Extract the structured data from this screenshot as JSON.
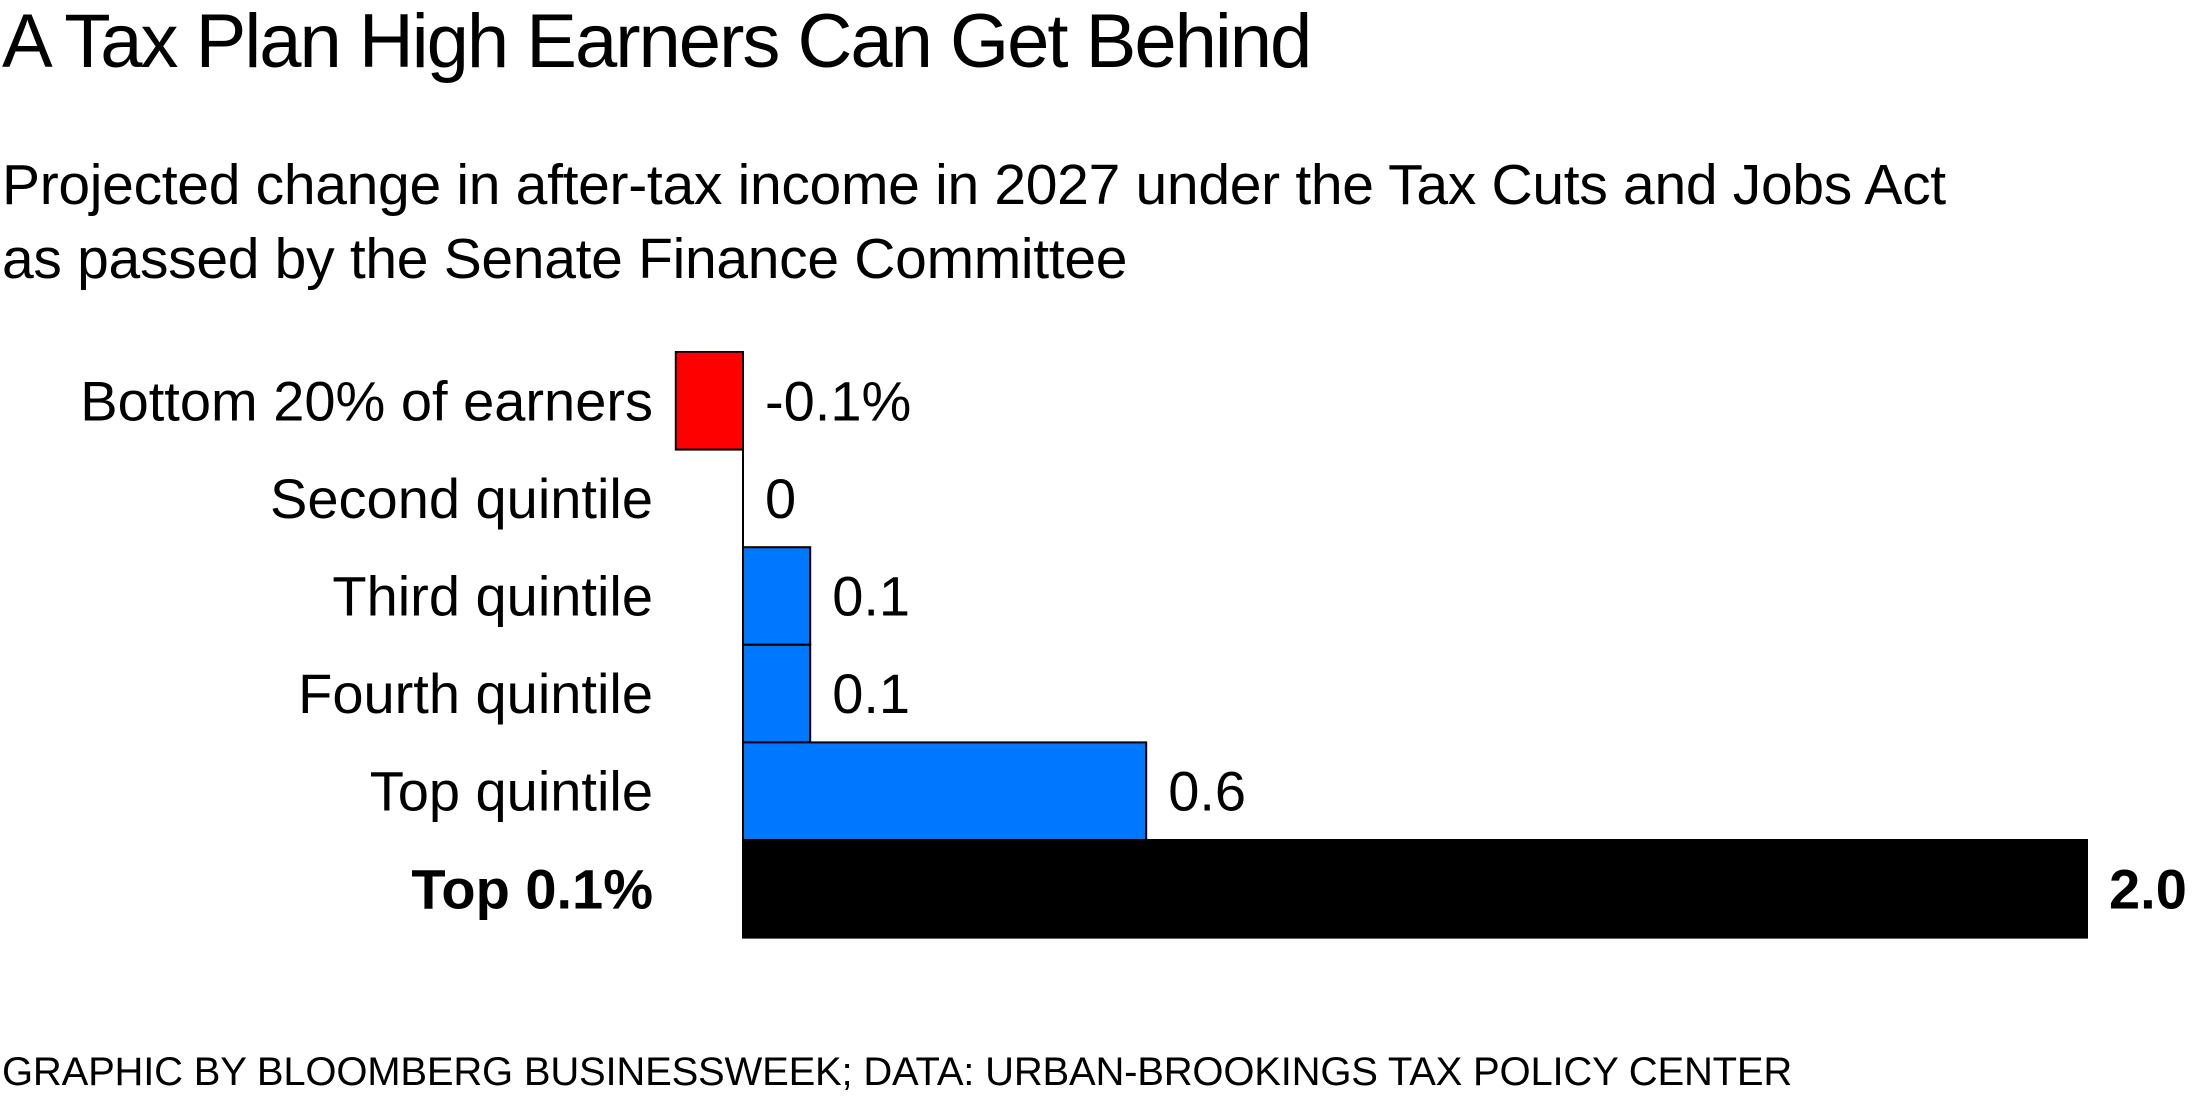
{
  "header": {
    "title": "A Tax Plan High Earners Can Get Behind",
    "subtitle_line1": "Projected change in after-tax income in 2027 under the Tax Cuts and Jobs Act",
    "subtitle_line2": "as passed by the Senate Finance Committee"
  },
  "footer": {
    "source": "GRAPHIC BY BLOOMBERG BUSINESSWEEK; DATA: URBAN-BROOKINGS TAX POLICY CENTER"
  },
  "colors": {
    "negative": "#ff0000",
    "positive": "#0077ff",
    "highlight": "#000000",
    "text": "#000000",
    "bar_stroke": "#000000"
  },
  "chart_data": {
    "type": "bar",
    "orientation": "horizontal",
    "title": "A Tax Plan High Earners Can Get Behind",
    "subtitle": "Projected change in after-tax income in 2027 under the Tax Cuts and Jobs Act as passed by the Senate Finance Committee",
    "xlabel": "",
    "ylabel": "",
    "unit": "%",
    "xlim": [
      -0.1,
      2.0
    ],
    "grid": false,
    "categories": [
      "Bottom 20% of earners",
      "Second quintile",
      "Third quintile",
      "Fourth quintile",
      "Top quintile",
      "Top 0.1%"
    ],
    "values": [
      -0.1,
      0,
      0.1,
      0.1,
      0.6,
      2.0
    ],
    "value_labels": [
      "-0.1%",
      "0",
      "0.1",
      "0.1",
      "0.6",
      "2.0"
    ],
    "fill_roles": [
      "negative",
      "positive",
      "positive",
      "positive",
      "positive",
      "highlight"
    ],
    "bold": [
      false,
      false,
      false,
      false,
      false,
      true
    ]
  }
}
